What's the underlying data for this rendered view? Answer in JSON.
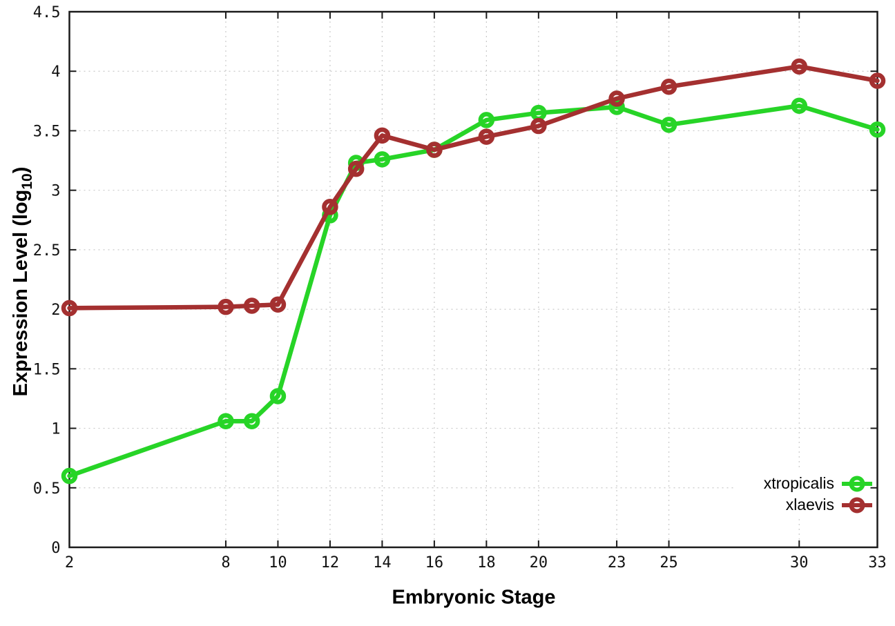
{
  "chart_data": {
    "type": "line",
    "title": "",
    "xlabel": "Embryonic Stage",
    "ylabel": {
      "prefix": "Expression Level (log",
      "subscript": "10",
      "suffix": ")"
    },
    "xlim": [
      2,
      33
    ],
    "ylim": [
      0,
      4.5
    ],
    "x_ticks": [
      2,
      8,
      10,
      12,
      14,
      16,
      18,
      20,
      23,
      25,
      30,
      33
    ],
    "y_ticks": [
      0,
      0.5,
      1,
      1.5,
      2,
      2.5,
      3,
      3.5,
      4,
      4.5
    ],
    "grid": true,
    "legend_position": "bottom-right",
    "x": [
      2,
      8,
      9,
      10,
      12,
      13,
      14,
      16,
      18,
      20,
      23,
      25,
      30,
      33
    ],
    "series": [
      {
        "name": "xtropicalis",
        "color": "#27d427",
        "values": [
          0.6,
          1.06,
          1.06,
          1.27,
          2.79,
          3.23,
          3.26,
          3.34,
          3.59,
          3.65,
          3.7,
          3.55,
          3.71,
          3.51
        ]
      },
      {
        "name": "xlaevis",
        "color": "#a43030",
        "values": [
          2.01,
          2.02,
          2.03,
          2.04,
          2.86,
          3.18,
          3.46,
          3.34,
          3.45,
          3.54,
          3.77,
          3.87,
          4.04,
          3.92
        ]
      }
    ]
  },
  "colors": {
    "background": "#ffffff",
    "axis": "#1a1a1a",
    "grid": "#c9c9c9",
    "text": "#111111"
  }
}
